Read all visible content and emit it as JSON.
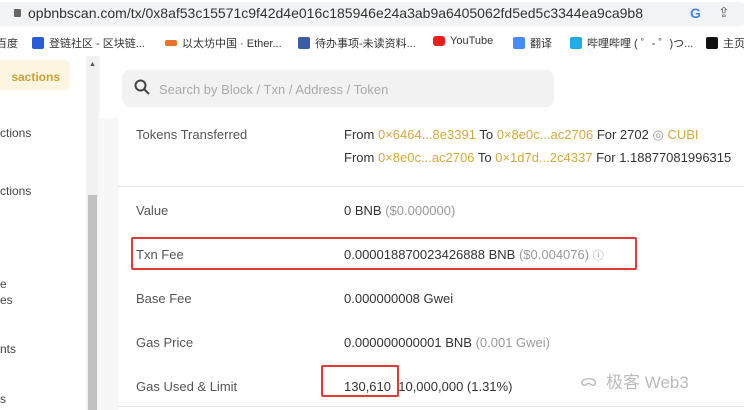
{
  "browser": {
    "url": "opbnbscan.com/tx/0x8af53c15571c9f42d4e016c185946e24a3ab9a6405062fd5ed5c3344ea9ca9b8",
    "bookmarks": [
      "百度",
      "登链社区 - 区块链...",
      "以太坊中国 · Ether...",
      "待办事项-未读资料...",
      "YouTube",
      "翻译",
      "哔哩哔哩 ( ゜- ゜)つ...",
      "主页"
    ]
  },
  "sidebar": {
    "items": [
      "sactions",
      "ctions",
      "ctions",
      "e",
      "es",
      "nts",
      "s"
    ]
  },
  "search": {
    "placeholder": "Search by Block / Txn / Address / Token"
  },
  "details": {
    "tokens_label": "Tokens Transferred",
    "transfers": [
      {
        "from_w": "From",
        "from": "0×6464...8e3391",
        "to_w": "To",
        "to": "0×8e0c...ac2706",
        "for_w": "For 2702",
        "token": "CUBI"
      },
      {
        "from_w": "From",
        "from": "0×8e0c...ac2706",
        "to_w": "To",
        "to": "0×1d7d...2c4337",
        "for_w": "For 1.18877081996315"
      }
    ],
    "value_label": "Value",
    "value": "0 BNB",
    "value_usd": "($0.000000)",
    "fee_label": "Txn Fee",
    "fee": "0.000018870023426888 BNB",
    "fee_usd": "($0.004076)",
    "base_label": "Base Fee",
    "base": "0.000000008 Gwei",
    "price_label": "Gas Price",
    "price": "0.000000000001 BNB",
    "price_gwei": "(0.001 Gwei)",
    "gas_label": "Gas Used & Limit",
    "gas_used": "130,610",
    "gas_limit": "10,000,000 (1.31%)"
  },
  "watermark": "极客 Web3",
  "colors": {
    "accent": "#d4a93c",
    "highlight": "#e53935"
  }
}
